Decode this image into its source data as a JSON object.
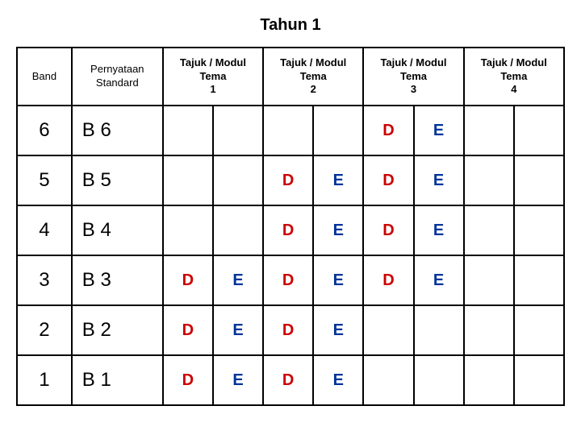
{
  "title": "Tahun 1",
  "headers": {
    "band": "Band",
    "statement": "Pernyataan\nStandard",
    "tema1": "Tajuk / Modul\nTema\n1",
    "tema2": "Tajuk / Modul\nTema\n2",
    "tema3": "Tajuk / Modul\nTema\n3",
    "tema4": "Tajuk / Modul\nTema\n4"
  },
  "rows": [
    {
      "band": "6",
      "stmt": "B 6",
      "cells": [
        "",
        "",
        "",
        "",
        "D",
        "E",
        "",
        ""
      ]
    },
    {
      "band": "5",
      "stmt": "B 5",
      "cells": [
        "",
        "",
        "D",
        "E",
        "D",
        "E",
        "",
        ""
      ]
    },
    {
      "band": "4",
      "stmt": "B 4",
      "cells": [
        "",
        "",
        "D",
        "E",
        "D",
        "E",
        "",
        ""
      ]
    },
    {
      "band": "3",
      "stmt": "B 3",
      "cells": [
        "D",
        "E",
        "D",
        "E",
        "D",
        "E",
        "",
        ""
      ]
    },
    {
      "band": "2",
      "stmt": "B 2",
      "cells": [
        "D",
        "E",
        "D",
        "E",
        "",
        "",
        "",
        ""
      ]
    },
    {
      "band": "1",
      "stmt": "B 1",
      "cells": [
        "D",
        "E",
        "D",
        "E",
        "",
        "",
        "",
        ""
      ]
    }
  ],
  "colors": {
    "d_color": "#cc0000",
    "e_color": "#003399",
    "border": "#000000",
    "background": "#ffffff"
  }
}
